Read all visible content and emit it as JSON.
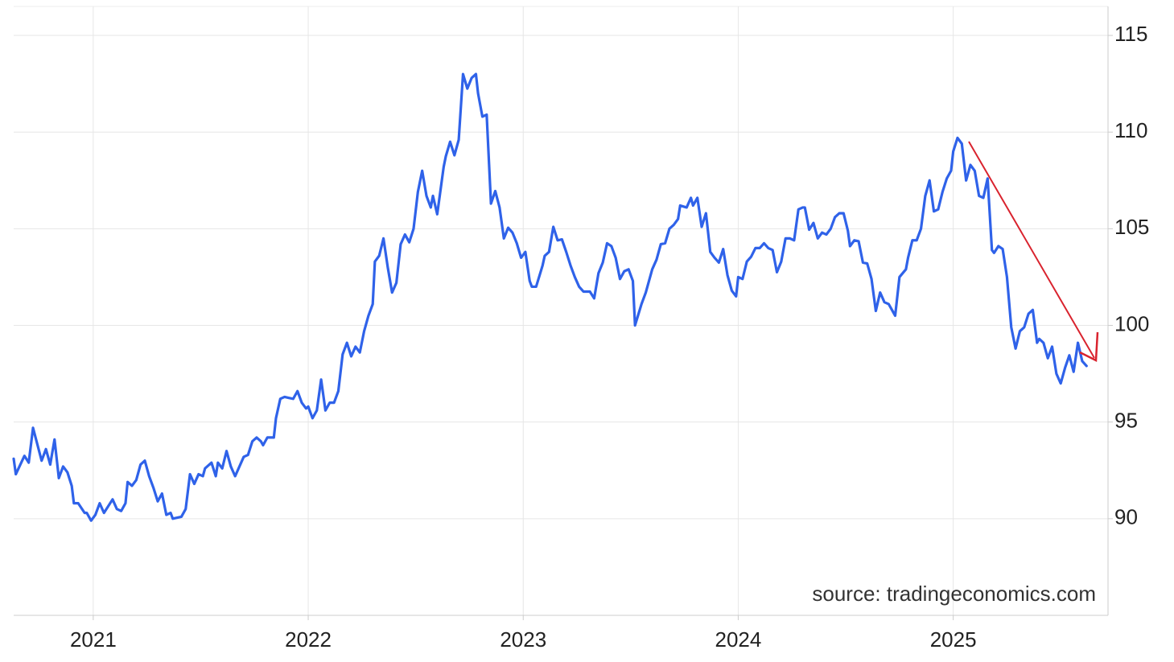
{
  "chart_data": {
    "type": "line",
    "source": "source: tradingeconomics.com",
    "xlim": [
      2020.63,
      2025.72
    ],
    "xticks": [
      2021,
      2022,
      2023,
      2024,
      2025
    ],
    "ylim": [
      85,
      116.5
    ],
    "yticks": [
      90,
      95,
      100,
      105,
      110,
      115
    ],
    "grid": true,
    "x": [
      2020.63,
      2020.64,
      2020.68,
      2020.7,
      2020.72,
      2020.76,
      2020.78,
      2020.8,
      2020.82,
      2020.84,
      2020.86,
      2020.88,
      2020.9,
      2020.91,
      2020.93,
      2020.96,
      2020.97,
      2020.99,
      2021.01,
      2021.03,
      2021.05,
      2021.09,
      2021.11,
      2021.13,
      2021.15,
      2021.16,
      2021.18,
      2021.2,
      2021.22,
      2021.24,
      2021.26,
      2021.28,
      2021.3,
      2021.32,
      2021.34,
      2021.36,
      2021.37,
      2021.41,
      2021.43,
      2021.45,
      2021.47,
      2021.49,
      2021.51,
      2021.52,
      2021.55,
      2021.57,
      2021.58,
      2021.6,
      2021.62,
      2021.64,
      2021.66,
      2021.7,
      2021.72,
      2021.74,
      2021.76,
      2021.78,
      2021.79,
      2021.81,
      2021.84,
      2021.85,
      2021.87,
      2021.89,
      2021.91,
      2021.93,
      2021.95,
      2021.97,
      2021.99,
      2022.0,
      2022.02,
      2022.04,
      2022.06,
      2022.08,
      2022.1,
      2022.12,
      2022.14,
      2022.16,
      2022.18,
      2022.2,
      2022.22,
      2022.24,
      2022.26,
      2022.28,
      2022.3,
      2022.31,
      2022.33,
      2022.35,
      2022.37,
      2022.39,
      2022.41,
      2022.43,
      2022.45,
      2022.47,
      2022.49,
      2022.51,
      2022.53,
      2022.55,
      2022.57,
      2022.58,
      2022.6,
      2022.63,
      2022.64,
      2022.66,
      2022.68,
      2022.7,
      2022.72,
      2022.74,
      2022.76,
      2022.78,
      2022.79,
      2022.81,
      2022.83,
      2022.85,
      2022.87,
      2022.89,
      2022.91,
      2022.93,
      2022.95,
      2022.97,
      2022.99,
      2023.01,
      2023.03,
      2023.04,
      2023.06,
      2023.09,
      2023.1,
      2023.12,
      2023.14,
      2023.16,
      2023.18,
      2023.2,
      2023.22,
      2023.24,
      2023.26,
      2023.28,
      2023.31,
      2023.33,
      2023.35,
      2023.37,
      2023.39,
      2023.41,
      2023.43,
      2023.45,
      2023.47,
      2023.49,
      2023.51,
      2023.52,
      2023.55,
      2023.57,
      2023.58,
      2023.6,
      2023.62,
      2023.64,
      2023.66,
      2023.68,
      2023.7,
      2023.72,
      2023.73,
      2023.76,
      2023.78,
      2023.79,
      2023.81,
      2023.83,
      2023.85,
      2023.87,
      2023.89,
      2023.91,
      2023.93,
      2023.95,
      2023.97,
      2023.99,
      2024.0,
      2024.02,
      2024.04,
      2024.06,
      2024.08,
      2024.1,
      2024.12,
      2024.14,
      2024.16,
      2024.18,
      2024.2,
      2024.22,
      2024.24,
      2024.26,
      2024.28,
      2024.3,
      2024.31,
      2024.33,
      2024.35,
      2024.37,
      2024.39,
      2024.41,
      2024.43,
      2024.45,
      2024.47,
      2024.49,
      2024.51,
      2024.52,
      2024.54,
      2024.56,
      2024.58,
      2024.6,
      2024.62,
      2024.64,
      2024.66,
      2024.68,
      2024.7,
      2024.72,
      2024.73,
      2024.75,
      2024.78,
      2024.79,
      2024.81,
      2024.83,
      2024.85,
      2024.87,
      2024.89,
      2024.91,
      2024.93,
      2024.95,
      2024.97,
      2024.99,
      2025.0,
      2025.02,
      2025.04,
      2025.06,
      2025.08,
      2025.1,
      2025.12,
      2025.14,
      2025.16,
      2025.18,
      2025.19,
      2025.21,
      2025.23,
      2025.25,
      2025.27,
      2025.29,
      2025.31,
      2025.33,
      2025.35,
      2025.37,
      2025.39,
      2025.4,
      2025.42,
      2025.44,
      2025.46,
      2025.48,
      2025.5,
      2025.52,
      2025.54,
      2025.56,
      2025.58,
      2025.6,
      2025.62
    ],
    "series": [
      {
        "color": "#2f62e9",
        "values": [
          93.1,
          92.3,
          93.25,
          92.9,
          94.7,
          93.0,
          93.6,
          92.8,
          94.1,
          92.1,
          92.7,
          92.4,
          91.7,
          90.8,
          90.8,
          90.3,
          90.3,
          89.9,
          90.2,
          90.8,
          90.3,
          91.0,
          90.5,
          90.4,
          90.8,
          91.9,
          91.7,
          92.0,
          92.8,
          93.0,
          92.2,
          91.6,
          90.9,
          91.3,
          90.2,
          90.3,
          90.0,
          90.1,
          90.5,
          92.3,
          91.8,
          92.3,
          92.2,
          92.6,
          92.9,
          92.2,
          92.9,
          92.6,
          93.5,
          92.7,
          92.2,
          93.2,
          93.3,
          94.0,
          94.2,
          94.0,
          93.8,
          94.2,
          94.2,
          95.2,
          96.2,
          96.3,
          96.25,
          96.2,
          96.6,
          96.0,
          95.7,
          95.8,
          95.2,
          95.6,
          97.2,
          95.6,
          96.0,
          96.0,
          96.6,
          98.5,
          99.1,
          98.4,
          98.9,
          98.6,
          99.7,
          100.5,
          101.1,
          103.3,
          103.6,
          104.5,
          103.0,
          101.7,
          102.2,
          104.2,
          104.7,
          104.3,
          105.0,
          106.9,
          108.0,
          106.7,
          106.1,
          106.7,
          105.75,
          108.2,
          108.75,
          109.5,
          108.8,
          109.6,
          113.0,
          112.25,
          112.8,
          113.0,
          112.0,
          110.8,
          110.9,
          106.3,
          106.95,
          106.1,
          104.5,
          105.05,
          104.8,
          104.25,
          103.5,
          103.8,
          102.3,
          102.0,
          102.0,
          103.1,
          103.6,
          103.8,
          105.1,
          104.4,
          104.45,
          103.8,
          103.1,
          102.5,
          102.0,
          101.75,
          101.75,
          101.4,
          102.7,
          103.25,
          104.25,
          104.1,
          103.5,
          102.4,
          102.8,
          102.9,
          102.3,
          100.0,
          101.1,
          101.7,
          102.1,
          102.9,
          103.4,
          104.2,
          104.25,
          105.0,
          105.2,
          105.5,
          106.2,
          106.1,
          106.6,
          106.2,
          106.6,
          105.1,
          105.8,
          103.8,
          103.5,
          103.25,
          103.95,
          102.6,
          101.8,
          101.5,
          102.5,
          102.4,
          103.3,
          103.55,
          104.0,
          104.0,
          104.25,
          104.0,
          103.9,
          102.75,
          103.3,
          104.5,
          104.5,
          104.4,
          106.0,
          106.1,
          106.1,
          104.95,
          105.3,
          104.5,
          104.8,
          104.7,
          105.0,
          105.6,
          105.8,
          105.8,
          104.9,
          104.1,
          104.4,
          104.35,
          103.25,
          103.2,
          102.4,
          100.75,
          101.7,
          101.2,
          101.1,
          100.7,
          100.5,
          102.5,
          102.9,
          103.5,
          104.4,
          104.4,
          105.0,
          106.7,
          107.5,
          105.9,
          106.0,
          106.9,
          107.6,
          108.0,
          109.0,
          109.7,
          109.4,
          107.5,
          108.3,
          108.0,
          106.7,
          106.6,
          107.6,
          103.9,
          103.75,
          104.1,
          103.95,
          102.5,
          99.9,
          98.8,
          99.7,
          99.9,
          100.6,
          100.8,
          99.1,
          99.3,
          99.1,
          98.3,
          98.9,
          97.5,
          97.0,
          97.8,
          98.45,
          97.6,
          99.1,
          98.15,
          97.9
        ]
      }
    ]
  }
}
